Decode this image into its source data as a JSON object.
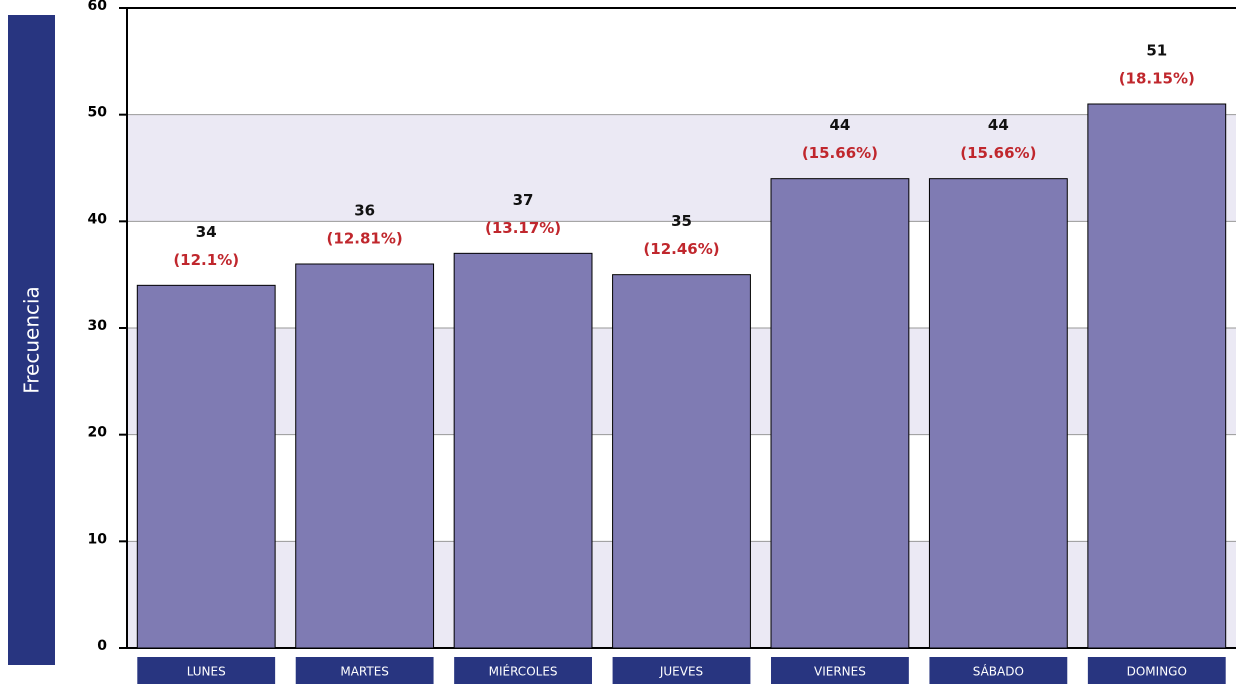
{
  "chart_data": {
    "type": "bar",
    "y_label": "Frecuencia",
    "categories": [
      "LUNES",
      "MARTES",
      "MIÉRCOLES",
      "JUEVES",
      "VIERNES",
      "SÁBADO",
      "DOMINGO"
    ],
    "values": [
      34,
      36,
      37,
      35,
      44,
      44,
      51
    ],
    "percentages": [
      12.1,
      12.81,
      13.17,
      12.46,
      15.66,
      15.66,
      18.15
    ],
    "percentage_labels": [
      "(12.1%)",
      "(12.81%)",
      "(13.17%)",
      "(12.46%)",
      "(15.66%)",
      "(15.66%)",
      "(18.15%)"
    ],
    "color": "#7f7bb3",
    "label_color": "#c0272d",
    "ylim": [
      0,
      60
    ],
    "yticks": [
      0,
      10,
      20,
      30,
      40,
      50,
      60
    ],
    "grid": true
  }
}
